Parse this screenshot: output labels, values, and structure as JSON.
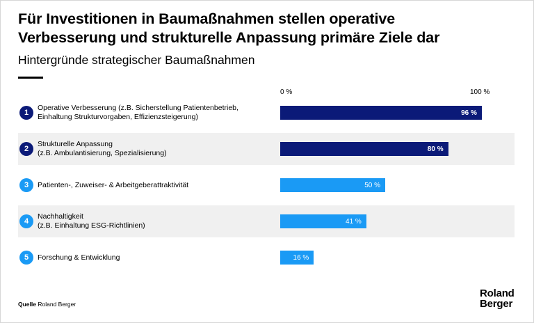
{
  "title_line1": "Für Investitionen in Baumaßnahmen stellen operative",
  "title_line2": "Verbesserung und strukturelle Anpassung primäre Ziele dar",
  "subtitle": "Hintergründe strategischer Baumaßnahmen",
  "source_label": "Quelle",
  "source_value": "Roland Berger",
  "logo": {
    "line1": "Roland",
    "line2": "Berger"
  },
  "colors": {
    "dark": "#0b1a78",
    "light": "#1a9af5",
    "row_shade": "#f0f0f0"
  },
  "chart_data": {
    "type": "bar",
    "orientation": "horizontal",
    "xlim": [
      0,
      100
    ],
    "ticks": [
      "0 %",
      "100 %"
    ],
    "grid": false,
    "categories": [
      {
        "number": "1",
        "label_lines": [
          "Operative Verbesserung (z.B. Sicherstellung Patientenbetrieb,",
          "Einhaltung Strukturvorgaben, Effizienzsteigerung)"
        ],
        "value": 96,
        "value_label": "96 %",
        "color": "#0b1a78",
        "shaded": false,
        "style": "dark"
      },
      {
        "number": "2",
        "label_lines": [
          "Strukturelle Anpassung",
          "(z.B. Ambulantisierung, Spezialisierung)"
        ],
        "value": 80,
        "value_label": "80 %",
        "color": "#0b1a78",
        "shaded": true,
        "style": "dark"
      },
      {
        "number": "3",
        "label_lines": [
          "Patienten-, Zuweiser- & Arbeitgeberattraktivität"
        ],
        "value": 50,
        "value_label": "50 %",
        "color": "#1a9af5",
        "shaded": false,
        "style": "light"
      },
      {
        "number": "4",
        "label_lines": [
          "Nachhaltigkeit",
          "(z.B. Einhaltung ESG-Richtlinien)"
        ],
        "value": 41,
        "value_label": "41 %",
        "color": "#1a9af5",
        "shaded": true,
        "style": "light"
      },
      {
        "number": "5",
        "label_lines": [
          "Forschung & Entwicklung"
        ],
        "value": 16,
        "value_label": "16 %",
        "color": "#1a9af5",
        "shaded": false,
        "style": "light"
      }
    ]
  }
}
